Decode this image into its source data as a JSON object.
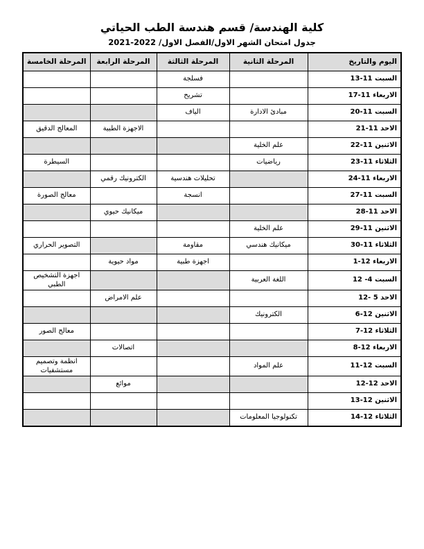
{
  "page": {
    "title": "كلية الهندسة/ قسم هندسة الطب الحياتي",
    "subtitle": "جدول امتحان الشهر الاول/الفصل الاول/ 2022-2021"
  },
  "colors": {
    "header_bg": "#dcdcdc",
    "shaded_cell_bg": "#dcdcdc",
    "border": "#000000",
    "text": "#000000"
  },
  "table": {
    "headers": {
      "date": "اليوم والتاريخ",
      "stage2": "المرحلة الثانية",
      "stage3": "المرحلة الثالثة",
      "stage4": "المرحلة الرابعة",
      "stage5": "المرحلة الخامسة"
    },
    "rows": [
      {
        "date": "السبت 11-13",
        "stage2": "",
        "stage3": "فسلجة",
        "stage4": "",
        "stage5": "",
        "shaded": false
      },
      {
        "date": "الاربعاء 11-17",
        "stage2": "",
        "stage3": "تشريح",
        "stage4": "",
        "stage5": "",
        "shaded": false
      },
      {
        "date": "السبت 11-20",
        "stage2": "مبادئ الادارة",
        "stage3": "الياف",
        "stage4": "",
        "stage5": "",
        "shaded": true
      },
      {
        "date": "الاحد 11-21",
        "stage2": "",
        "stage3": "",
        "stage4": "الاجهزة الطبية",
        "stage5": "المعالج الدقيق",
        "shaded": false
      },
      {
        "date": "الاثنين 11-22",
        "stage2": "علم الخلية",
        "stage3": "",
        "stage4": "",
        "stage5": "",
        "shaded": true
      },
      {
        "date": "الثلاثاء 11-23",
        "stage2": "رياضيات",
        "stage3": "",
        "stage4": "",
        "stage5": "السيطرة",
        "shaded": false
      },
      {
        "date": "الاربعاء 11-24",
        "stage2": "",
        "stage3": "تحليلات هندسية",
        "stage4": "الكترونيك رقمي",
        "stage5": "",
        "shaded": true
      },
      {
        "date": "السبت 11-27",
        "stage2": "",
        "stage3": "انسجة",
        "stage4": "",
        "stage5": "معالج الصورة",
        "shaded": false
      },
      {
        "date": "الاحد 11-28",
        "stage2": "",
        "stage3": "",
        "stage4": "ميكانيك حيوي",
        "stage5": "",
        "shaded": true
      },
      {
        "date": "الاثنين 11-29",
        "stage2": "علم الخلية",
        "stage3": "",
        "stage4": "",
        "stage5": "",
        "shaded": false
      },
      {
        "date": "الثلاثاء 11-30",
        "stage2": "ميكانيك هندسي",
        "stage3": "مقاومة",
        "stage4": "",
        "stage5": "التصوير الحراري",
        "shaded": true
      },
      {
        "date": "الاربعاء 12-1",
        "stage2": "",
        "stage3": "اجهزة طبية",
        "stage4": "مواد حيوية",
        "stage5": "",
        "shaded": false
      },
      {
        "date": "السبت 4- 12",
        "stage2": "اللغة العربية",
        "stage3": "",
        "stage4": "",
        "stage5": "اجهزة التشخيص الطبي",
        "shaded": true
      },
      {
        "date": "الاحد 5 -12",
        "stage2": "",
        "stage3": "",
        "stage4": "علم الامراض",
        "stage5": "",
        "shaded": false
      },
      {
        "date": "الاثنين 12-6",
        "stage2": "الكترونيك",
        "stage3": "",
        "stage4": "",
        "stage5": "",
        "shaded": true
      },
      {
        "date": "الثلاثاء 12-7",
        "stage2": "",
        "stage3": "",
        "stage4": "",
        "stage5": "معالج الصور",
        "shaded": false
      },
      {
        "date": "الاربعاء 12-8",
        "stage2": "",
        "stage3": "",
        "stage4": "اتصالات",
        "stage5": "",
        "shaded": true
      },
      {
        "date": "السبت 12-11",
        "stage2": "علم المواد",
        "stage3": "",
        "stage4": "",
        "stage5": "انظمة وتصميم مستشفيات",
        "shaded": false
      },
      {
        "date": "الاحد 12-12",
        "stage2": "",
        "stage3": "",
        "stage4": "موائع",
        "stage5": "",
        "shaded": true
      },
      {
        "date": "الاثنين 12-13",
        "stage2": "",
        "stage3": "",
        "stage4": "",
        "stage5": "",
        "shaded": false
      },
      {
        "date": "الثلاثاء 12-14",
        "stage2": "تكنولوجيا المعلومات",
        "stage3": "",
        "stage4": "",
        "stage5": "",
        "shaded": true
      }
    ]
  }
}
